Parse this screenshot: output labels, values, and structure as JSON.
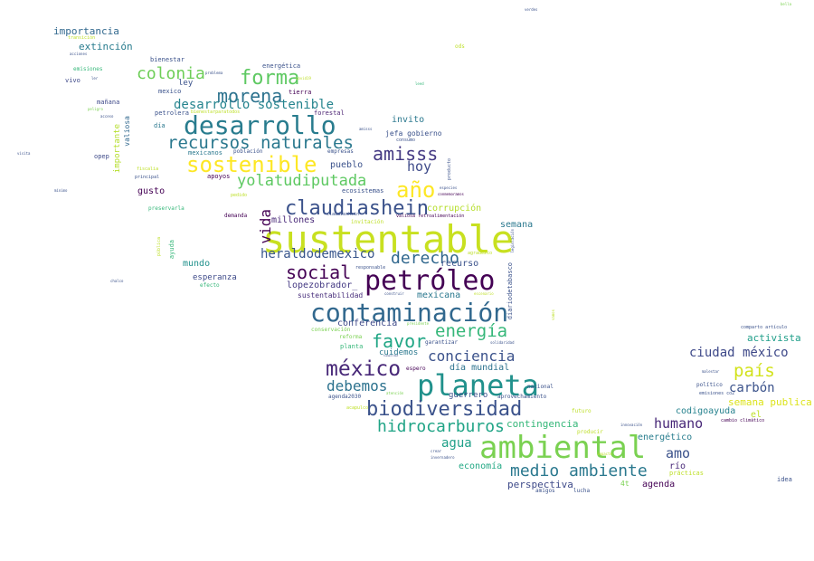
{
  "words": [
    {
      "text": "sustentable",
      "color": "#c8e020"
    },
    {
      "text": "ambiental",
      "color": "#7ad151"
    },
    {
      "text": "petróleo",
      "color": "#440154"
    },
    {
      "text": "planeta",
      "color": "#21918c"
    },
    {
      "text": "contaminación",
      "color": "#31688e"
    },
    {
      "text": "desarrollo",
      "color": "#287c8e"
    },
    {
      "text": "biodiversidad",
      "color": "#3b528b"
    },
    {
      "text": "sostenible",
      "color": "#fde725"
    },
    {
      "text": "recursos naturales",
      "color": "#2a788e"
    },
    {
      "text": "méxico",
      "color": "#482878"
    },
    {
      "text": "claudiashein",
      "color": "#3b528b"
    },
    {
      "text": "medio ambiente",
      "color": "#2a788e"
    },
    {
      "text": "forma",
      "color": "#5ec962"
    },
    {
      "text": "morena",
      "color": "#2c728e"
    },
    {
      "text": "amisss",
      "color": "#443983"
    },
    {
      "text": "año",
      "color": "#fde725"
    },
    {
      "text": "social",
      "color": "#440154"
    },
    {
      "text": "derecho",
      "color": "#31688e"
    },
    {
      "text": "energía",
      "color": "#35b779"
    },
    {
      "text": "favor",
      "color": "#21a685"
    },
    {
      "text": "yolatudiputada",
      "color": "#5ec962"
    },
    {
      "text": "hidrocarburos",
      "color": "#20a486"
    },
    {
      "text": "colonia",
      "color": "#6ece58"
    },
    {
      "text": "país",
      "color": "#d2e21b"
    },
    {
      "text": "hoy",
      "color": "#3e4a89"
    },
    {
      "text": "conciencia",
      "color": "#3b528b"
    },
    {
      "text": "debemos",
      "color": "#2c728e"
    },
    {
      "text": "desarrollo sostenible",
      "color": "#25848e"
    },
    {
      "text": "heraldodemexico",
      "color": "#39568c"
    },
    {
      "text": "humano",
      "color": "#482878"
    },
    {
      "text": "ciudad méxico",
      "color": "#3e4989"
    },
    {
      "text": "agua",
      "color": "#1fa088"
    },
    {
      "text": "amo",
      "color": "#3b528b"
    },
    {
      "text": "carbón",
      "color": "#3b528b"
    },
    {
      "text": "vida",
      "color": "#440154"
    },
    {
      "text": "activista",
      "color": "#1f9e89"
    },
    {
      "text": "semana publica",
      "color": "#dce319"
    },
    {
      "text": "contingencia",
      "color": "#35b779"
    },
    {
      "text": "importancia",
      "color": "#31688e"
    },
    {
      "text": "extinción",
      "color": "#287c8e"
    },
    {
      "text": "millones",
      "color": "#482878"
    },
    {
      "text": "perspectiva",
      "color": "#3e4a89"
    },
    {
      "text": "agenda",
      "color": "#440154"
    },
    {
      "text": "lopezobrador_",
      "color": "#443983"
    },
    {
      "text": "recurso",
      "color": "#3b528b"
    },
    {
      "text": "mexicana",
      "color": "#2a788e"
    },
    {
      "text": "conferencia",
      "color": "#3e4989"
    },
    {
      "text": "día mundial",
      "color": "#2c728e"
    },
    {
      "text": "economía",
      "color": "#22a884"
    },
    {
      "text": "codigoayuda",
      "color": "#26828e"
    },
    {
      "text": "energético",
      "color": "#287d8e"
    },
    {
      "text": "río",
      "color": "#482878"
    },
    {
      "text": "el",
      "color": "#bddf26"
    },
    {
      "text": "semana",
      "color": "#2a788e"
    },
    {
      "text": "corrupción",
      "color": "#b5de2b"
    },
    {
      "text": "invito",
      "color": "#2a788e"
    },
    {
      "text": "pueblo",
      "color": "#3b528b"
    },
    {
      "text": "gusto",
      "color": "#440154"
    },
    {
      "text": "mundo",
      "color": "#21918c"
    },
    {
      "text": "esperanza",
      "color": "#3e4a89"
    },
    {
      "text": "sustentabilidad",
      "color": "#472d7b"
    },
    {
      "text": "ley",
      "color": "#3b528b"
    },
    {
      "text": "cuidemos",
      "color": "#2a788e"
    },
    {
      "text": "guerrero",
      "color": "#3b528b"
    },
    {
      "text": "jefa gobierno",
      "color": "#3b528b"
    },
    {
      "text": "importante",
      "color": "#b5de2b"
    },
    {
      "text": "valiosa",
      "color": "#31688e"
    },
    {
      "text": "ayuda",
      "color": "#35b779"
    },
    {
      "text": "bienestar",
      "color": "#3b528b"
    },
    {
      "text": "mañana",
      "color": "#3e4989"
    },
    {
      "text": "emisiones",
      "color": "#35b779"
    },
    {
      "text": "vivo",
      "color": "#3e4989"
    },
    {
      "text": "energética",
      "color": "#3b528b"
    },
    {
      "text": "mexico",
      "color": "#3b528b"
    },
    {
      "text": "tierra",
      "color": "#440154"
    },
    {
      "text": "forestal",
      "color": "#481f70"
    },
    {
      "text": "petrolera",
      "color": "#3b528b"
    },
    {
      "text": "día",
      "color": "#2a788e"
    },
    {
      "text": "apoyos",
      "color": "#440154"
    },
    {
      "text": "opep",
      "color": "#3e4a89"
    },
    {
      "text": "mexicanos",
      "color": "#2a788e"
    },
    {
      "text": "población",
      "color": "#3b528b"
    },
    {
      "text": "empresas",
      "color": "#3b528b"
    },
    {
      "text": "ecosistemas",
      "color": "#3b528b"
    },
    {
      "text": "demanda",
      "color": "#440154"
    },
    {
      "text": "preservarla",
      "color": "#35b779"
    },
    {
      "text": "efecto",
      "color": "#35b779"
    },
    {
      "text": "planta",
      "color": "#35b779"
    },
    {
      "text": "garantizar",
      "color": "#3b528b"
    },
    {
      "text": "conservación",
      "color": "#7ad151"
    },
    {
      "text": "reforma",
      "color": "#7ad151"
    },
    {
      "text": "espero",
      "color": "#440154"
    },
    {
      "text": "agenda2030",
      "color": "#3b528b"
    },
    {
      "text": "aprovechamiento",
      "color": "#3b528b"
    },
    {
      "text": "nacional",
      "color": "#3b528b"
    },
    {
      "text": "lucha",
      "color": "#3b528b"
    },
    {
      "text": "4t",
      "color": "#7ad151"
    },
    {
      "text": "amigos",
      "color": "#3b528b"
    },
    {
      "text": "futuro",
      "color": "#bddf26"
    },
    {
      "text": "producir",
      "color": "#bddf26"
    },
    {
      "text": "prácticas",
      "color": "#bddf26"
    },
    {
      "text": "idea",
      "color": "#3b528b"
    },
    {
      "text": "político",
      "color": "#3b528b"
    },
    {
      "text": "emisiones co2",
      "color": "#3b528b"
    },
    {
      "text": "cambio climático",
      "color": "#440154"
    },
    {
      "text": "comparto artículo",
      "color": "#3b528b"
    },
    {
      "text": "malestar",
      "color": "#3b528b"
    },
    {
      "text": "innovación",
      "color": "#3b528b"
    },
    {
      "text": "ods",
      "color": "#bddf26"
    },
    {
      "text": "verdes",
      "color": "#3b528b"
    },
    {
      "text": "bella",
      "color": "#7ad151"
    },
    {
      "text": "transición",
      "color": "#bddf26"
    },
    {
      "text": "acciones",
      "color": "#3b528b"
    },
    {
      "text": "problema",
      "color": "#3b528b"
    },
    {
      "text": "covid19",
      "color": "#bddf26"
    },
    {
      "text": "ler",
      "color": "#3b528b"
    },
    {
      "text": "peligro",
      "color": "#7ad151"
    },
    {
      "text": "acceso",
      "color": "#3b528b"
    },
    {
      "text": "leed",
      "color": "#35b779"
    },
    {
      "text": "visita",
      "color": "#3b528b"
    },
    {
      "text": "mínimo",
      "color": "#3b528b"
    },
    {
      "text": "chalco",
      "color": "#3b528b"
    },
    {
      "text": "fiscalia",
      "color": "#bddf26"
    },
    {
      "text": "principal",
      "color": "#3b528b"
    },
    {
      "text": "pedido",
      "color": "#bddf26"
    },
    {
      "text": "bienestarparatodos",
      "color": "#bddf26"
    },
    {
      "text": "amisss",
      "color": "#3b528b"
    },
    {
      "text": "consumo",
      "color": "#3b528b"
    },
    {
      "text": "producto",
      "color": "#3b528b"
    },
    {
      "text": "especies",
      "color": "#3b528b"
    },
    {
      "text": "conmemoramos",
      "color": "#440154"
    },
    {
      "text": "claudiashein",
      "color": "#3b528b"
    },
    {
      "text": "invitación",
      "color": "#bddf26"
    },
    {
      "text": "valiosa retroalimentación",
      "color": "#440154"
    },
    {
      "text": "legislación",
      "color": "#3b528b"
    },
    {
      "text": "agradezco",
      "color": "#bddf26"
    },
    {
      "text": "responsable",
      "color": "#3b528b"
    },
    {
      "text": "construir",
      "color": "#3b528b"
    },
    {
      "text": "diariodetabasco",
      "color": "#3b528b"
    },
    {
      "text": "escenario",
      "color": "#bddf26"
    },
    {
      "text": "presidente",
      "color": "#7ad151"
    },
    {
      "text": "solidaridad",
      "color": "#3b528b"
    },
    {
      "text": "humanidad",
      "color": "#3b528b"
    },
    {
      "text": "atención",
      "color": "#7ad151"
    },
    {
      "text": "acapulco",
      "color": "#bddf26"
    },
    {
      "text": "crear",
      "color": "#3b528b"
    },
    {
      "text": "invernadero",
      "color": "#3b528b"
    },
    {
      "text": "impacto",
      "color": "#bddf26"
    },
    {
      "text": "pública",
      "color": "#bddf26"
    },
    {
      "text": "vamos",
      "color": "#bddf26"
    }
  ]
}
